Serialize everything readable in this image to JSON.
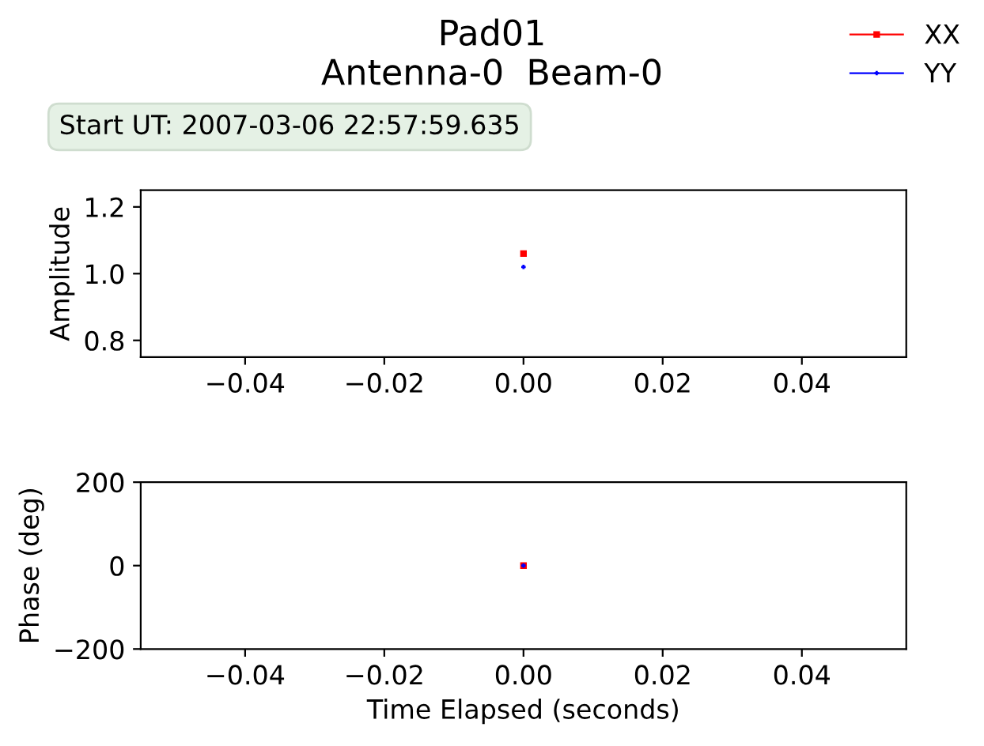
{
  "chart_data": [
    {
      "type": "line",
      "title": "Pad01\nAntenna-0  Beam-0",
      "annotations": [
        "Start UT: 2007-03-06 22:57:59.635"
      ],
      "ylabel": "Amplitude",
      "x": [
        0
      ],
      "xlim": [
        -0.055,
        0.055
      ],
      "xticks": [
        {
          "value": -0.04,
          "label": "−0.04"
        },
        {
          "value": -0.02,
          "label": "−0.02"
        },
        {
          "value": 0,
          "label": "0.00"
        },
        {
          "value": 0.02,
          "label": "0.02"
        },
        {
          "value": 0.04,
          "label": "0.04"
        }
      ],
      "ylim": [
        0.75,
        1.25
      ],
      "yticks": [
        {
          "value": 0.8,
          "label": "0.8"
        },
        {
          "value": 1.0,
          "label": "1.0"
        },
        {
          "value": 1.2,
          "label": "1.2"
        }
      ],
      "legend": "top right",
      "line_style": "solid",
      "series": [
        {
          "name": "XX",
          "color": "#ff0000",
          "marker": "square",
          "values": [
            1.06
          ]
        },
        {
          "name": "YY",
          "color": "#0000ff",
          "marker": "cross",
          "values": [
            1.02
          ]
        }
      ]
    },
    {
      "type": "line",
      "xlabel": "Time Elapsed (seconds)",
      "ylabel": "Phase (deg)",
      "x": [
        0
      ],
      "xlim": [
        -0.055,
        0.055
      ],
      "xticks": [
        {
          "value": -0.04,
          "label": "−0.04"
        },
        {
          "value": -0.02,
          "label": "−0.02"
        },
        {
          "value": 0,
          "label": "0.00"
        },
        {
          "value": 0.02,
          "label": "0.02"
        },
        {
          "value": 0.04,
          "label": "0.04"
        }
      ],
      "ylim": [
        -200,
        200
      ],
      "yticks": [
        {
          "value": -200,
          "label": "−200"
        },
        0,
        200
      ],
      "line_style": "solid",
      "series": [
        {
          "name": "XX",
          "color": "#ff0000",
          "marker": "square",
          "values": [
            0
          ]
        },
        {
          "name": "YY",
          "color": "#0000ff",
          "marker": "cross",
          "values": [
            0
          ]
        }
      ]
    }
  ]
}
